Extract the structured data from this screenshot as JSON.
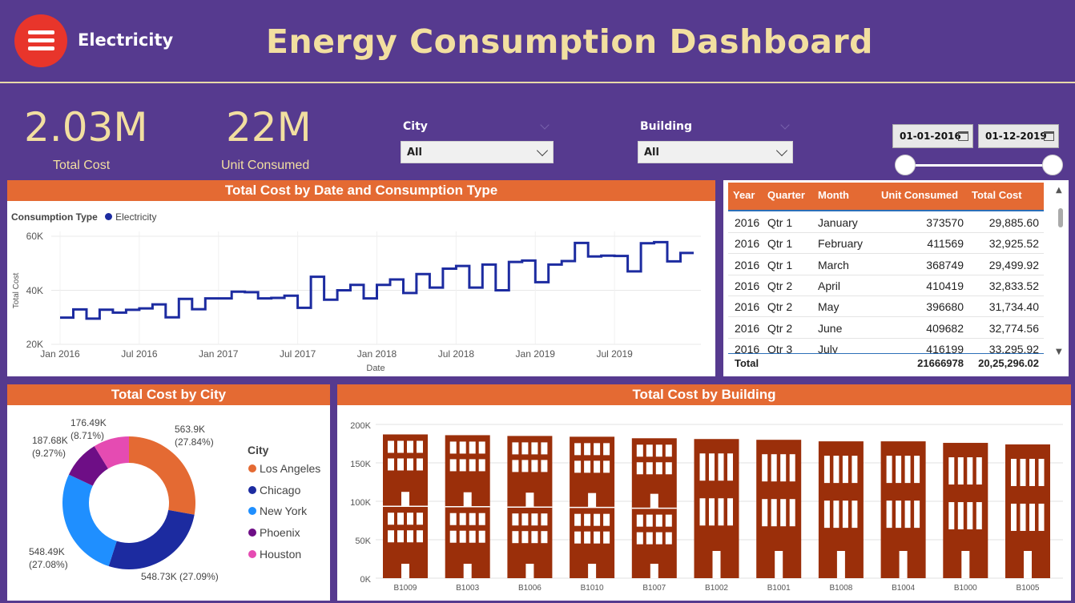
{
  "header": {
    "brand": "Electricity",
    "title": "Energy Consumption Dashboard"
  },
  "kpis": [
    {
      "value": "2.03M",
      "label": "Total Cost"
    },
    {
      "value": "22M",
      "label": "Unit Consumed"
    }
  ],
  "filters": {
    "city": {
      "label": "City",
      "value": "All"
    },
    "building": {
      "label": "Building",
      "value": "All"
    },
    "date_start": "01-01-2016",
    "date_end": "01-12-2019"
  },
  "colors": {
    "background": "#563A8F",
    "accent": "#E46A33",
    "title": "#F2DFA0",
    "line": "#1C2BA0",
    "building": "#9B2F0A",
    "cities": [
      "#E46A33",
      "#1C2BA0",
      "#1F8FFF",
      "#6E0E86",
      "#E54BB2"
    ]
  },
  "line_chart": {
    "title": "Total Cost by Date and Consumption Type",
    "legend_title": "Consumption Type",
    "legend_series": "Electricity",
    "xlabel": "Date",
    "ylabel": "Total Cost",
    "yticks": [
      "60K",
      "40K",
      "20K"
    ],
    "xticks": [
      "Jan 2016",
      "Jul 2016",
      "Jan 2017",
      "Jul 2017",
      "Jan 2018",
      "Jul 2018",
      "Jan 2019",
      "Jul 2019"
    ]
  },
  "table": {
    "columns": [
      "Year",
      "Quarter",
      "Month",
      "Unit Consumed",
      "Total Cost"
    ],
    "rows": [
      [
        "2016",
        "Qtr 1",
        "January",
        "373570",
        "29,885.60"
      ],
      [
        "2016",
        "Qtr 1",
        "February",
        "411569",
        "32,925.52"
      ],
      [
        "2016",
        "Qtr 1",
        "March",
        "368749",
        "29,499.92"
      ],
      [
        "2016",
        "Qtr 2",
        "April",
        "410419",
        "32,833.52"
      ],
      [
        "2016",
        "Qtr 2",
        "May",
        "396680",
        "31,734.40"
      ],
      [
        "2016",
        "Qtr 2",
        "June",
        "409682",
        "32,774.56"
      ],
      [
        "2016",
        "Qtr 3",
        "July",
        "416199",
        "33,295.92"
      ]
    ],
    "total": {
      "label": "Total",
      "unit": "21666978",
      "cost": "20,25,296.02"
    }
  },
  "donut": {
    "title": "Total Cost by City",
    "legend_title": "City",
    "labels": [
      {
        "value": "563.9K",
        "pct": "(27.84%)"
      },
      {
        "value": "548.73K (27.09%)",
        "pct": ""
      },
      {
        "value": "548.49K",
        "pct": "(27.08%)"
      },
      {
        "value": "187.68K",
        "pct": "(9.27%)"
      },
      {
        "value": "176.49K",
        "pct": "(8.71%)"
      }
    ]
  },
  "bar_chart": {
    "title": "Total Cost by Building",
    "yticks": [
      "200K",
      "150K",
      "100K",
      "50K",
      "0K"
    ]
  },
  "chart_data": [
    {
      "type": "line",
      "title": "Total Cost by Date and Consumption Type",
      "xlabel": "Date",
      "ylabel": "Total Cost",
      "ylim": [
        20000,
        60000
      ],
      "series": [
        {
          "name": "Electricity",
          "x": [
            "2016-01",
            "2016-02",
            "2016-03",
            "2016-04",
            "2016-05",
            "2016-06",
            "2016-07",
            "2016-08",
            "2016-09",
            "2016-10",
            "2016-11",
            "2016-12",
            "2017-01",
            "2017-02",
            "2017-03",
            "2017-04",
            "2017-05",
            "2017-06",
            "2017-07",
            "2017-08",
            "2017-09",
            "2017-10",
            "2017-11",
            "2017-12",
            "2018-01",
            "2018-02",
            "2018-03",
            "2018-04",
            "2018-05",
            "2018-06",
            "2018-07",
            "2018-08",
            "2018-09",
            "2018-10",
            "2018-11",
            "2018-12",
            "2019-01",
            "2019-02",
            "2019-03",
            "2019-04",
            "2019-05",
            "2019-06",
            "2019-07",
            "2019-08",
            "2019-09",
            "2019-10",
            "2019-11",
            "2019-12"
          ],
          "values": [
            29886,
            32926,
            29500,
            32834,
            31734,
            32775,
            33296,
            34800,
            30000,
            36800,
            33000,
            37000,
            37000,
            39500,
            39300,
            37000,
            37200,
            38000,
            33500,
            45000,
            36500,
            40000,
            42000,
            37000,
            42000,
            44000,
            39000,
            46000,
            41000,
            48000,
            49000,
            41000,
            49500,
            40000,
            50500,
            51000,
            43000,
            49500,
            50800,
            57500,
            52500,
            52800,
            52700,
            47000,
            57400,
            57800,
            50700,
            53800
          ]
        }
      ]
    },
    {
      "type": "pie",
      "title": "Total Cost by City",
      "categories": [
        "Los Angeles",
        "Chicago",
        "New York",
        "Phoenix",
        "Houston"
      ],
      "values": [
        563.9,
        548.73,
        548.49,
        187.68,
        176.49
      ],
      "percentages": [
        27.84,
        27.09,
        27.08,
        9.27,
        8.71
      ],
      "unit": "K"
    },
    {
      "type": "bar",
      "title": "Total Cost by Building",
      "categories": [
        "B1009",
        "B1003",
        "B1006",
        "B1010",
        "B1007",
        "B1002",
        "B1001",
        "B1008",
        "B1004",
        "B1000",
        "B1005"
      ],
      "values": [
        187000,
        186000,
        185000,
        184000,
        182000,
        181000,
        180000,
        178000,
        178000,
        176000,
        174000
      ],
      "ylim": [
        0,
        200000
      ]
    }
  ]
}
